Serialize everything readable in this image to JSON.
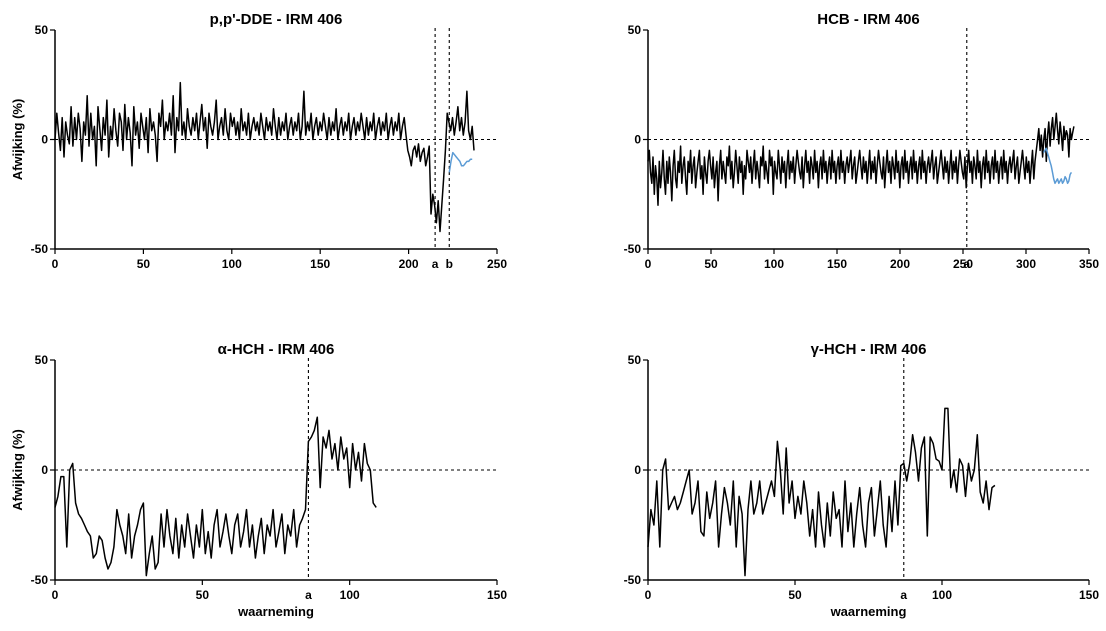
{
  "chart_data": [
    {
      "type": "line",
      "title": "p,p'-DDE - IRM 406",
      "ylabel": "Afwijking (%)",
      "xlabel": "",
      "xlim": [
        0,
        250
      ],
      "ylim": [
        -50,
        50
      ],
      "xticks": [
        "0",
        "50",
        "100",
        "150",
        "200",
        "250"
      ],
      "yticks": [
        "50",
        "0",
        "-50"
      ],
      "xtick_values": [
        0,
        50,
        100,
        150,
        200,
        250
      ],
      "ytick_values": [
        50,
        0,
        -50
      ],
      "reference_line_y": 0,
      "markers": [
        {
          "x": 215,
          "label": "a"
        },
        {
          "x": 223,
          "label": "b"
        }
      ],
      "series": [
        {
          "color": "#000000",
          "x_start": 0,
          "x_end": 237,
          "values": [
            0,
            12,
            3,
            -5,
            10,
            -8,
            8,
            2,
            -2,
            15,
            -3,
            10,
            0,
            12,
            5,
            -10,
            8,
            2,
            20,
            -3,
            12,
            0,
            6,
            -12,
            15,
            5,
            -5,
            10,
            2,
            18,
            -8,
            6,
            0,
            14,
            4,
            -3,
            12,
            8,
            -5,
            16,
            0,
            10,
            3,
            -12,
            15,
            2,
            8,
            -4,
            12,
            6,
            0,
            10,
            -6,
            14,
            4,
            8,
            2,
            -10,
            12,
            6,
            18,
            0,
            8,
            4,
            12,
            2,
            20,
            -6,
            10,
            4,
            26,
            2,
            8,
            0,
            14,
            6,
            2,
            10,
            4,
            12,
            0,
            8,
            16,
            4,
            10,
            -4,
            12,
            6,
            2,
            8,
            18,
            0,
            6,
            10,
            2,
            14,
            4,
            0,
            12,
            6,
            10,
            2,
            8,
            0,
            14,
            4,
            8,
            2,
            12,
            0,
            6,
            10,
            4,
            8,
            2,
            12,
            6,
            0,
            10,
            4,
            8,
            2,
            14,
            6,
            0,
            10,
            2,
            8,
            4,
            12,
            0,
            6,
            10,
            2,
            8,
            4,
            12,
            0,
            6,
            22,
            2,
            8,
            4,
            12,
            0,
            6,
            10,
            2,
            8,
            4,
            12,
            6,
            0,
            10,
            2,
            8,
            4,
            14,
            0,
            6,
            10,
            2,
            8,
            4,
            12,
            0,
            6,
            10,
            2,
            8,
            4,
            12,
            6,
            0,
            10,
            2,
            8,
            4,
            12,
            0,
            6,
            10,
            2,
            8,
            4,
            12,
            0,
            6,
            10,
            2,
            8,
            4,
            12,
            0,
            6,
            10,
            2,
            -5,
            -8,
            -12,
            -5,
            -3,
            -8,
            -2,
            -10,
            -6,
            -4,
            -12,
            -8,
            -3,
            -34,
            -25,
            -30,
            -38,
            -28,
            -42,
            -30,
            -18,
            -5,
            12,
            8,
            4,
            10,
            2,
            8,
            15,
            4,
            10,
            2,
            8,
            22,
            4,
            0,
            6,
            -5
          ]
        },
        {
          "color": "#5b9bd5",
          "x_start": 223,
          "x_end": 236,
          "values": [
            -15,
            -10,
            -6,
            -7,
            -8,
            -9,
            -10,
            -12,
            -12,
            -11,
            -10,
            -10,
            -9,
            -9
          ]
        }
      ]
    },
    {
      "type": "line",
      "title": "HCB - IRM 406",
      "ylabel": "",
      "xlabel": "",
      "xlim": [
        0,
        350
      ],
      "ylim": [
        -50,
        50
      ],
      "xticks": [
        "0",
        "50",
        "100",
        "150",
        "200",
        "250",
        "300",
        "350"
      ],
      "yticks": [
        "50",
        "0",
        "-50"
      ],
      "xtick_values": [
        0,
        50,
        100,
        150,
        200,
        250,
        300,
        350
      ],
      "ytick_values": [
        50,
        0,
        -50
      ],
      "reference_line_y": 0,
      "markers": [
        {
          "x": 253,
          "label": "a"
        }
      ],
      "series": [
        {
          "color": "#000000",
          "x_start": 0,
          "x_end": 338,
          "values": [
            -10,
            -5,
            -15,
            -20,
            -8,
            -25,
            -12,
            -18,
            -30,
            -10,
            -22,
            -15,
            -5,
            -18,
            -25,
            -10,
            -20,
            -8,
            -15,
            -28,
            -12,
            -5,
            -18,
            -22,
            -10,
            -15,
            -3,
            -20,
            -12,
            -8,
            -18,
            -25,
            -10,
            -15,
            -5,
            -20,
            -12,
            -8,
            -22,
            -15,
            -10,
            -5,
            -18,
            -12,
            -25,
            -8,
            -15,
            -20,
            -10,
            -5,
            -12,
            -18,
            -8,
            -22,
            -15,
            -10,
            -28,
            -12,
            -5,
            -18,
            -10,
            -15,
            -20,
            -8,
            -12,
            -3,
            -18,
            -10,
            -22,
            -15,
            -5,
            -12,
            -20,
            -8,
            -15,
            -10,
            -25,
            -12,
            -18,
            -5,
            -10,
            -15,
            -8,
            -20,
            -12,
            -5,
            -18,
            -10,
            -15,
            -22,
            -8,
            -12,
            -3,
            -18,
            -10,
            -15,
            -20,
            -5,
            -12,
            -8,
            -25,
            -10,
            -15,
            -18,
            -5,
            -12,
            -20,
            -8,
            -15,
            -10,
            -22,
            -12,
            -5,
            -18,
            -10,
            -15,
            -8,
            -20,
            -12,
            -5,
            -10,
            -15,
            -18,
            -8,
            -22,
            -12,
            -5,
            -15,
            -10,
            -20,
            -8,
            -12,
            -18,
            -5,
            -15,
            -10,
            -22,
            -12,
            -8,
            -18,
            -5,
            -15,
            -10,
            -20,
            -12,
            -8,
            -18,
            -5,
            -15,
            -10,
            -20,
            -12,
            -8,
            -18,
            -5,
            -15,
            -10,
            -20,
            -12,
            -8,
            -15,
            -10,
            -5,
            -18,
            -12,
            -8,
            -20,
            -15,
            -10,
            -5,
            -12,
            -18,
            -8,
            -15,
            -10,
            -20,
            -12,
            -5,
            -18,
            -10,
            -15,
            -8,
            -20,
            -12,
            -5,
            -10,
            -15,
            -18,
            -8,
            -22,
            -12,
            -5,
            -15,
            -10,
            -20,
            -8,
            -12,
            -18,
            -5,
            -15,
            -10,
            -22,
            -12,
            -8,
            -18,
            -5,
            -15,
            -10,
            -20,
            -12,
            -8,
            -18,
            -5,
            -15,
            -10,
            -20,
            -12,
            -8,
            -18,
            -5,
            -15,
            -10,
            -20,
            -12,
            -8,
            -15,
            -10,
            -5,
            -18,
            -12,
            -8,
            -20,
            -15,
            -10,
            -5,
            -12,
            -18,
            -8,
            -15,
            -10,
            -20,
            -12,
            -5,
            -18,
            -10,
            -15,
            -8,
            -20,
            -12,
            -5,
            -10,
            -15,
            -18,
            -8,
            -22,
            -12,
            -5,
            -15,
            -10,
            -20,
            -8,
            -12,
            -18,
            -5,
            -15,
            -10,
            -22,
            -12,
            -8,
            -18,
            -5,
            -15,
            -10,
            -20,
            -12,
            -8,
            -18,
            -5,
            -15,
            -10,
            -20,
            -12,
            -8,
            -18,
            -5,
            -15,
            -10,
            -20,
            -12,
            -8,
            -15,
            -10,
            -5,
            -18,
            -12,
            -8,
            -20,
            -15,
            -10,
            -5,
            -12,
            -18,
            -8,
            -15,
            -10,
            -20,
            -12,
            -5,
            -18,
            -10,
            -5,
            0,
            5,
            -5,
            2,
            -8,
            0,
            5,
            -10,
            2,
            8,
            -3,
            5,
            10,
            0,
            6,
            12,
            4,
            -2,
            8,
            2,
            -5,
            6,
            0,
            4,
            2,
            -8,
            5,
            0,
            3,
            6
          ]
        },
        {
          "color": "#5b9bd5",
          "x_start": 314,
          "x_end": 336,
          "values": [
            -6,
            -5,
            -4,
            -6,
            -8,
            -10,
            -12,
            -15,
            -18,
            -20,
            -19,
            -18,
            -20,
            -19,
            -18,
            -20,
            -19,
            -17,
            -18,
            -20,
            -19,
            -16,
            -15
          ]
        }
      ]
    },
    {
      "type": "line",
      "title": "α-HCH - IRM 406",
      "ylabel": "Afwijking (%)",
      "xlabel": "waarneming",
      "xlim": [
        0,
        150
      ],
      "ylim": [
        -50,
        50
      ],
      "xticks": [
        "0",
        "50",
        "100",
        "150"
      ],
      "yticks": [
        "50",
        "0",
        "-50"
      ],
      "xtick_values": [
        0,
        50,
        100,
        150
      ],
      "ytick_values": [
        50,
        0,
        -50
      ],
      "reference_line_y": 0,
      "markers": [
        {
          "x": 86,
          "label": "a"
        }
      ],
      "series": [
        {
          "color": "#000000",
          "x_start": 0,
          "x_end": 109,
          "values": [
            -17,
            -12,
            -3,
            -3,
            -35,
            0,
            3,
            -15,
            -20,
            -22,
            -25,
            -28,
            -30,
            -40,
            -38,
            -30,
            -32,
            -40,
            -45,
            -42,
            -35,
            -18,
            -25,
            -30,
            -38,
            -20,
            -40,
            -30,
            -25,
            -18,
            -15,
            -48,
            -38,
            -30,
            -45,
            -42,
            -20,
            -35,
            -18,
            -30,
            -38,
            -22,
            -40,
            -25,
            -35,
            -20,
            -30,
            -40,
            -25,
            -35,
            -18,
            -38,
            -28,
            -40,
            -25,
            -18,
            -35,
            -28,
            -20,
            -30,
            -38,
            -25,
            -20,
            -35,
            -28,
            -18,
            -35,
            -25,
            -40,
            -30,
            -22,
            -38,
            -25,
            -30,
            -18,
            -35,
            -28,
            -20,
            -38,
            -25,
            -30,
            -18,
            -35,
            -25,
            -22,
            -18,
            13,
            15,
            18,
            24,
            -8,
            15,
            10,
            18,
            5,
            12,
            0,
            15,
            5,
            10,
            -8,
            12,
            0,
            8,
            -5,
            12,
            3,
            0,
            -15,
            -17
          ]
        }
      ]
    },
    {
      "type": "line",
      "title": "γ-HCH - IRM 406",
      "ylabel": "",
      "xlabel": "waarneming",
      "xlim": [
        0,
        150
      ],
      "ylim": [
        -50,
        50
      ],
      "xticks": [
        "0",
        "50",
        "100",
        "150"
      ],
      "yticks": [
        "50",
        "0",
        "-50"
      ],
      "xtick_values": [
        0,
        50,
        100,
        150
      ],
      "ytick_values": [
        50,
        0,
        -50
      ],
      "reference_line_y": 0,
      "markers": [
        {
          "x": 87,
          "label": "a"
        }
      ],
      "series": [
        {
          "color": "#000000",
          "x_start": 0,
          "x_end": 118,
          "values": [
            -35,
            -18,
            -25,
            -5,
            -35,
            0,
            5,
            -18,
            -15,
            -12,
            -18,
            -15,
            -10,
            -5,
            0,
            -20,
            -15,
            -5,
            -28,
            -30,
            -10,
            -22,
            -15,
            -5,
            -35,
            -20,
            -8,
            -15,
            -25,
            -5,
            -35,
            -12,
            -20,
            -48,
            -18,
            -5,
            -20,
            -15,
            -5,
            -20,
            -15,
            -10,
            -5,
            -12,
            13,
            0,
            -20,
            10,
            -15,
            -5,
            -22,
            -12,
            -20,
            -5,
            -15,
            -30,
            -18,
            -35,
            -10,
            -25,
            -35,
            -15,
            -30,
            -10,
            -22,
            -18,
            -35,
            -5,
            -28,
            -15,
            -35,
            -20,
            -8,
            -25,
            -35,
            -15,
            -8,
            -30,
            -18,
            -5,
            -25,
            -35,
            -12,
            -28,
            -5,
            -25,
            2,
            3,
            -5,
            3,
            16,
            8,
            -5,
            10,
            15,
            -30,
            15,
            12,
            5,
            4,
            0,
            28,
            28,
            -8,
            0,
            -10,
            5,
            2,
            -12,
            3,
            -5,
            0,
            16,
            -10,
            -15,
            -5,
            -18,
            -8,
            -7
          ]
        }
      ]
    }
  ]
}
